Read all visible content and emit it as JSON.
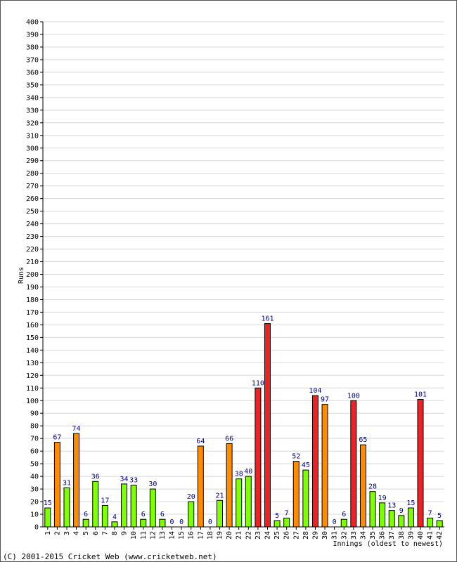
{
  "chart_data": {
    "type": "bar",
    "title": "",
    "ylabel": "Runs",
    "xlabel": "Innings (oldest to newest)",
    "ylim": [
      0,
      400
    ],
    "ytick_step": 10,
    "grid": true,
    "categories": [
      "1",
      "2",
      "3",
      "4",
      "5",
      "6",
      "7",
      "8",
      "9",
      "10",
      "11",
      "12",
      "13",
      "14",
      "15",
      "16",
      "17",
      "18",
      "19",
      "20",
      "21",
      "22",
      "23",
      "24",
      "25",
      "26",
      "27",
      "28",
      "29",
      "30",
      "31",
      "32",
      "33",
      "34",
      "35",
      "36",
      "37",
      "38",
      "39",
      "40",
      "41",
      "42"
    ],
    "values": [
      15,
      67,
      31,
      74,
      6,
      36,
      17,
      4,
      34,
      33,
      6,
      30,
      6,
      0,
      0,
      20,
      64,
      0,
      21,
      66,
      38,
      40,
      110,
      161,
      5,
      7,
      52,
      45,
      104,
      97,
      0,
      6,
      100,
      65,
      28,
      19,
      13,
      9,
      15,
      101,
      7,
      5
    ],
    "colors": {
      "under_50": "#80ff00",
      "fifty": "#ff8c00",
      "hundred": "#ee2222"
    }
  },
  "footer": {
    "copyright": "(C) 2001-2015 Cricket Web (www.cricketweb.net)"
  }
}
